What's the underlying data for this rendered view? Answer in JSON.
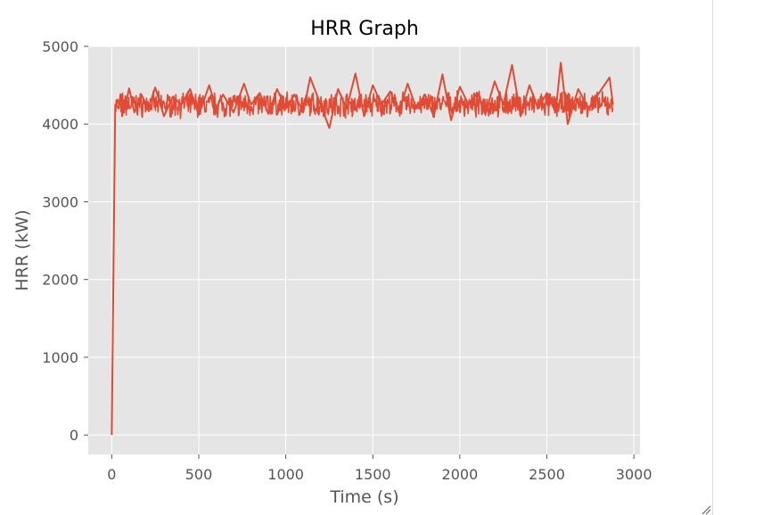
{
  "chart_data": {
    "type": "line",
    "title": "HRR Graph",
    "xlabel": "Time (s)",
    "ylabel": "HRR (kW)",
    "xlim": [
      -135,
      3035
    ],
    "ylim": [
      -250,
      5000
    ],
    "xticks": [
      0,
      500,
      1000,
      1500,
      2000,
      2500,
      3000
    ],
    "yticks": [
      0,
      1000,
      2000,
      3000,
      4000,
      5000
    ],
    "grid": true,
    "style": "ggplot",
    "colors": {
      "line": "#E24A33",
      "plot_bg": "#E5E5E5",
      "grid": "#FFFFFF",
      "tick_text": "#555555",
      "title": "#000000"
    },
    "series": [
      {
        "x": [
          0,
          20,
          40,
          50,
          60,
          70,
          80,
          100,
          130,
          170,
          210,
          250,
          300,
          350,
          400,
          450,
          500,
          560,
          600,
          640,
          700,
          760,
          800,
          850,
          900,
          950,
          1000,
          1050,
          1100,
          1140,
          1200,
          1250,
          1300,
          1350,
          1400,
          1450,
          1500,
          1550,
          1600,
          1650,
          1700,
          1750,
          1800,
          1850,
          1900,
          1950,
          2000,
          2050,
          2100,
          2150,
          2200,
          2250,
          2300,
          2350,
          2400,
          2450,
          2500,
          2550,
          2580,
          2620,
          2680,
          2740,
          2800,
          2860,
          2880
        ],
        "y": [
          0,
          4250,
          4200,
          4380,
          4100,
          4300,
          4250,
          4460,
          4150,
          4380,
          4200,
          4470,
          4100,
          4350,
          4250,
          4450,
          4120,
          4500,
          4200,
          4380,
          4150,
          4520,
          4250,
          4400,
          4130,
          4450,
          4200,
          4380,
          4150,
          4600,
          4250,
          3950,
          4450,
          4200,
          4650,
          4100,
          4500,
          4250,
          4420,
          4150,
          4520,
          4200,
          4380,
          4100,
          4640,
          4050,
          4480,
          4250,
          4400,
          4150,
          4550,
          4250,
          4760,
          4100,
          4500,
          4200,
          4400,
          4150,
          4790,
          4000,
          4450,
          4200,
          4400,
          4600,
          4250
        ]
      }
    ]
  }
}
